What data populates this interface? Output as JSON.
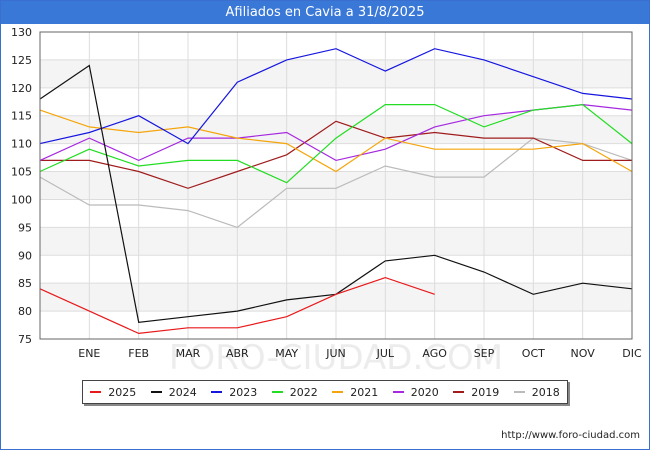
{
  "title": "Afiliados en Cavia a 31/8/2025",
  "source": "http://www.foro-ciudad.com",
  "watermark": "FORO-CIUDAD.COM",
  "chart_data": {
    "type": "line",
    "categories": [
      "",
      "ENE",
      "FEB",
      "MAR",
      "ABR",
      "MAY",
      "JUN",
      "JUL",
      "AGO",
      "SEP",
      "OCT",
      "NOV",
      "DIC"
    ],
    "ylim": [
      75,
      130
    ],
    "yticks": [
      75,
      80,
      85,
      90,
      95,
      100,
      105,
      110,
      115,
      120,
      125,
      130
    ],
    "grid": true,
    "legend_position": "bottom",
    "series": [
      {
        "name": "2025",
        "color": "#e8191b",
        "values": [
          84,
          80,
          76,
          77,
          77,
          79,
          83,
          86,
          83,
          null,
          null,
          null,
          null
        ]
      },
      {
        "name": "2024",
        "color": "#111111",
        "values": [
          118,
          124,
          78,
          79,
          80,
          82,
          83,
          89,
          90,
          87,
          83,
          85,
          84
        ]
      },
      {
        "name": "2023",
        "color": "#1616e0",
        "values": [
          110,
          112,
          115,
          110,
          121,
          125,
          127,
          123,
          127,
          125,
          122,
          119,
          118
        ]
      },
      {
        "name": "2022",
        "color": "#22dd22",
        "values": [
          105,
          109,
          106,
          107,
          107,
          103,
          111,
          117,
          117,
          113,
          116,
          117,
          110
        ]
      },
      {
        "name": "2021",
        "color": "#f5a50a",
        "values": [
          116,
          113,
          112,
          113,
          111,
          110,
          105,
          111,
          109,
          109,
          109,
          110,
          105
        ]
      },
      {
        "name": "2020",
        "color": "#a628e0",
        "values": [
          107,
          111,
          107,
          111,
          111,
          112,
          107,
          109,
          113,
          115,
          116,
          117,
          116
        ]
      },
      {
        "name": "2019",
        "color": "#a01c1c",
        "values": [
          107,
          107,
          105,
          102,
          105,
          108,
          114,
          111,
          112,
          111,
          111,
          107,
          107
        ]
      },
      {
        "name": "2018",
        "color": "#bbbbbb",
        "values": [
          104,
          99,
          99,
          98,
          95,
          102,
          102,
          106,
          104,
          104,
          111,
          110,
          107
        ]
      }
    ]
  }
}
